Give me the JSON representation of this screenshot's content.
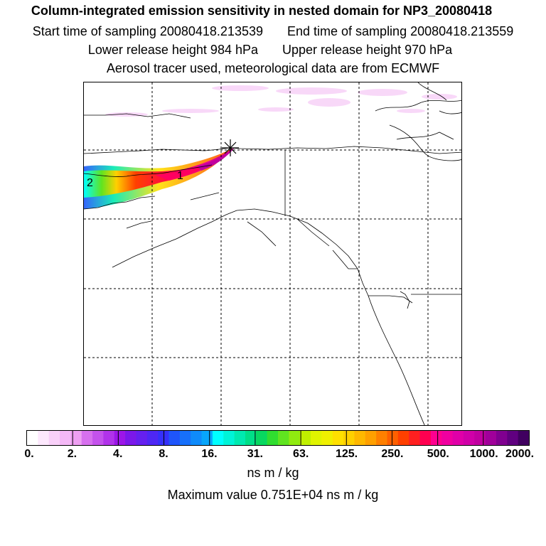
{
  "header": {
    "title": "Column-integrated emission sensitivity in nested domain for NP3_20080418",
    "start_time": "Start time of sampling 20080418.213539",
    "end_time": "End time of sampling 20080418.213559",
    "lower_height": "Lower release height  984 hPa",
    "upper_height": "Upper release height  970 hPa",
    "tracer_info": "Aerosol tracer used, meteorological data are from ECMWF"
  },
  "map": {
    "markers": [
      {
        "label": "1"
      },
      {
        "label": "2"
      }
    ],
    "release_point_marker": "star-x"
  },
  "colorbar": {
    "tick_labels": [
      "0.",
      "2.",
      "4.",
      "8.",
      "16.",
      "31.",
      "63.",
      "125.",
      "250.",
      "500.",
      "1000.",
      "2000."
    ],
    "colors": [
      "#ffffff",
      "#fde8fd",
      "#f9d0f9",
      "#f4b8f6",
      "#ee9ff2",
      "#d770ee",
      "#c452ec",
      "#b133ea",
      "#9c16e8",
      "#7b18ea",
      "#6520ef",
      "#4e27f4",
      "#3530fa",
      "#1f55fb",
      "#1770fb",
      "#0f8bfb",
      "#08a6fb",
      "#00ffff",
      "#00f4d8",
      "#00eab0",
      "#00df88",
      "#08d860",
      "#30dd30",
      "#60e420",
      "#90eb10",
      "#c0f000",
      "#e0f400",
      "#f0f000",
      "#ffe000",
      "#ffd000",
      "#ffb800",
      "#ffa000",
      "#ff8000",
      "#ff6000",
      "#ff4000",
      "#ff2020",
      "#ff0050",
      "#ff0090",
      "#f000a0",
      "#e000a8",
      "#d000a8",
      "#c000a0",
      "#a0009a",
      "#800090",
      "#600080",
      "#400060"
    ]
  },
  "units": "ns m / kg",
  "maximum_value": "Maximum value  0.751E+04 ns m / kg"
}
